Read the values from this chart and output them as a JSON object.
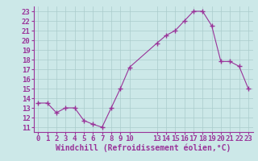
{
  "x": [
    0,
    1,
    2,
    3,
    4,
    5,
    6,
    7,
    8,
    9,
    10,
    13,
    14,
    15,
    16,
    17,
    18,
    19,
    20,
    21,
    22,
    23
  ],
  "y": [
    13.5,
    13.5,
    12.5,
    13.0,
    13.0,
    11.7,
    11.3,
    11.0,
    13.0,
    15.0,
    17.2,
    19.7,
    20.5,
    21.0,
    22.0,
    23.0,
    23.0,
    21.5,
    17.8,
    17.8,
    17.3,
    15.0
  ],
  "xticks": [
    0,
    1,
    2,
    3,
    4,
    5,
    6,
    7,
    8,
    9,
    10,
    13,
    14,
    15,
    16,
    17,
    18,
    19,
    20,
    21,
    22,
    23
  ],
  "yticks": [
    11,
    12,
    13,
    14,
    15,
    16,
    17,
    18,
    19,
    20,
    21,
    22,
    23
  ],
  "ylim": [
    10.5,
    23.5
  ],
  "xlim": [
    -0.5,
    23.5
  ],
  "xlabel": "Windchill (Refroidissement éolien,°C)",
  "line_color": "#993399",
  "marker": "+",
  "marker_size": 4,
  "bg_color": "#cce8e8",
  "grid_color": "#aacccc",
  "tick_label_color": "#993399",
  "font_size_ticks": 6.5,
  "font_size_xlabel": 7.0,
  "spine_color": "#993399"
}
